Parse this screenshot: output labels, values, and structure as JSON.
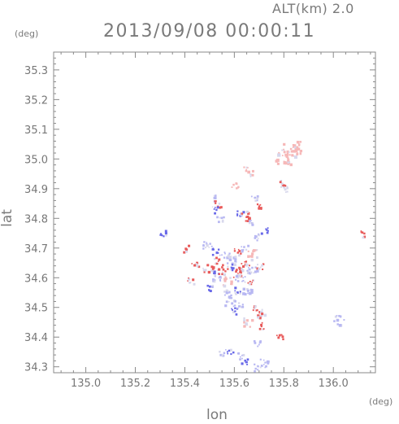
{
  "header": {
    "altitude_label": "ALT(km)",
    "altitude_value": "2.0",
    "timestamp": "2013/09/08 00:00:11"
  },
  "chart_data": {
    "type": "scatter",
    "xlabel": "lon",
    "ylabel": "lat",
    "x_unit": "(deg)",
    "y_unit": "(deg)",
    "xlim": [
      134.87,
      136.17
    ],
    "ylim": [
      34.28,
      35.36
    ],
    "xticks": [
      135.0,
      135.2,
      135.4,
      135.6,
      135.8,
      136.0
    ],
    "xtick_labels": [
      "135.0",
      "135.2",
      "135.4",
      "135.6",
      "135.8",
      "136.0"
    ],
    "yticks": [
      34.3,
      34.4,
      34.5,
      34.6,
      34.7,
      34.8,
      34.9,
      35.0,
      35.1,
      35.2,
      35.3
    ],
    "ytick_labels": [
      "34.3",
      "34.4",
      "34.5",
      "34.6",
      "34.7",
      "34.8",
      "34.9",
      "35.0",
      "35.1",
      "35.2",
      "35.3"
    ],
    "grid": false,
    "colors": {
      "positive_strong": "#e85a5a",
      "positive_light": "#f6b8b8",
      "negative_strong": "#6868e8",
      "negative_light": "#b8b8f2",
      "neutral": "#d8d8ec",
      "axis": "#8a8a8a"
    },
    "points": [
      {
        "lon": 135.84,
        "lat": 35.04,
        "c": "positive_light",
        "s": 3
      },
      {
        "lon": 135.82,
        "lat": 35.03,
        "c": "positive_light",
        "s": 3
      },
      {
        "lon": 135.79,
        "lat": 35.01,
        "c": "positive_light",
        "s": 3
      },
      {
        "lon": 135.81,
        "lat": 35.0,
        "c": "positive_light",
        "s": 2
      },
      {
        "lon": 135.65,
        "lat": 34.96,
        "c": "positive_light",
        "s": 2
      },
      {
        "lon": 135.79,
        "lat": 34.92,
        "c": "positive_strong",
        "s": 1
      },
      {
        "lon": 135.8,
        "lat": 34.9,
        "c": "neutral",
        "s": 1
      },
      {
        "lon": 135.6,
        "lat": 34.91,
        "c": "positive_light",
        "s": 1
      },
      {
        "lon": 135.51,
        "lat": 34.87,
        "c": "negative_light",
        "s": 1
      },
      {
        "lon": 135.53,
        "lat": 34.85,
        "c": "positive_strong",
        "s": 1
      },
      {
        "lon": 135.52,
        "lat": 34.83,
        "c": "negative_strong",
        "s": 1
      },
      {
        "lon": 135.54,
        "lat": 34.8,
        "c": "negative_light",
        "s": 1
      },
      {
        "lon": 135.68,
        "lat": 34.87,
        "c": "negative_light",
        "s": 1
      },
      {
        "lon": 135.7,
        "lat": 34.84,
        "c": "positive_strong",
        "s": 1
      },
      {
        "lon": 135.62,
        "lat": 34.82,
        "c": "negative_strong",
        "s": 1
      },
      {
        "lon": 135.64,
        "lat": 34.81,
        "c": "positive_strong",
        "s": 2
      },
      {
        "lon": 135.67,
        "lat": 34.79,
        "c": "negative_light",
        "s": 1
      },
      {
        "lon": 135.72,
        "lat": 34.76,
        "c": "negative_strong",
        "s": 1
      },
      {
        "lon": 135.69,
        "lat": 34.74,
        "c": "negative_light",
        "s": 1
      },
      {
        "lon": 135.31,
        "lat": 34.75,
        "c": "negative_strong",
        "s": 1
      },
      {
        "lon": 136.12,
        "lat": 34.75,
        "c": "positive_strong",
        "s": 1
      },
      {
        "lon": 135.4,
        "lat": 34.7,
        "c": "positive_strong",
        "s": 1
      },
      {
        "lon": 135.49,
        "lat": 34.71,
        "c": "negative_light",
        "s": 2
      },
      {
        "lon": 135.52,
        "lat": 34.69,
        "c": "negative_strong",
        "s": 1
      },
      {
        "lon": 135.56,
        "lat": 34.68,
        "c": "negative_light",
        "s": 2
      },
      {
        "lon": 135.61,
        "lat": 34.69,
        "c": "positive_strong",
        "s": 1
      },
      {
        "lon": 135.64,
        "lat": 34.7,
        "c": "negative_light",
        "s": 1
      },
      {
        "lon": 135.67,
        "lat": 34.68,
        "c": "positive_light",
        "s": 2
      },
      {
        "lon": 135.59,
        "lat": 34.66,
        "c": "negative_light",
        "s": 2
      },
      {
        "lon": 135.53,
        "lat": 34.66,
        "c": "positive_strong",
        "s": 1
      },
      {
        "lon": 135.44,
        "lat": 34.65,
        "c": "positive_strong",
        "s": 1
      },
      {
        "lon": 135.49,
        "lat": 34.63,
        "c": "positive_strong",
        "s": 2
      },
      {
        "lon": 135.52,
        "lat": 34.62,
        "c": "negative_strong",
        "s": 1
      },
      {
        "lon": 135.55,
        "lat": 34.63,
        "c": "positive_strong",
        "s": 2
      },
      {
        "lon": 135.58,
        "lat": 34.64,
        "c": "negative_strong",
        "s": 1
      },
      {
        "lon": 135.61,
        "lat": 34.62,
        "c": "positive_strong",
        "s": 2
      },
      {
        "lon": 135.64,
        "lat": 34.64,
        "c": "positive_strong",
        "s": 2
      },
      {
        "lon": 135.67,
        "lat": 34.63,
        "c": "negative_light",
        "s": 2
      },
      {
        "lon": 135.7,
        "lat": 34.64,
        "c": "positive_strong",
        "s": 1
      },
      {
        "lon": 135.42,
        "lat": 34.59,
        "c": "positive_strong",
        "s": 1
      },
      {
        "lon": 135.53,
        "lat": 34.6,
        "c": "negative_light",
        "s": 2
      },
      {
        "lon": 135.57,
        "lat": 34.59,
        "c": "positive_light",
        "s": 2
      },
      {
        "lon": 135.62,
        "lat": 34.6,
        "c": "negative_light",
        "s": 2
      },
      {
        "lon": 135.66,
        "lat": 34.59,
        "c": "positive_strong",
        "s": 1
      },
      {
        "lon": 135.5,
        "lat": 34.57,
        "c": "negative_strong",
        "s": 1
      },
      {
        "lon": 135.57,
        "lat": 34.55,
        "c": "negative_light",
        "s": 2
      },
      {
        "lon": 135.61,
        "lat": 34.56,
        "c": "negative_strong",
        "s": 1
      },
      {
        "lon": 135.65,
        "lat": 34.55,
        "c": "negative_light",
        "s": 2
      },
      {
        "lon": 135.58,
        "lat": 34.52,
        "c": "negative_light",
        "s": 2
      },
      {
        "lon": 135.62,
        "lat": 34.51,
        "c": "negative_light",
        "s": 1
      },
      {
        "lon": 135.6,
        "lat": 34.49,
        "c": "negative_strong",
        "s": 1
      },
      {
        "lon": 135.68,
        "lat": 34.5,
        "c": "positive_strong",
        "s": 1
      },
      {
        "lon": 135.7,
        "lat": 34.48,
        "c": "positive_strong",
        "s": 2
      },
      {
        "lon": 135.65,
        "lat": 34.45,
        "c": "positive_light",
        "s": 2
      },
      {
        "lon": 135.71,
        "lat": 34.44,
        "c": "positive_strong",
        "s": 1
      },
      {
        "lon": 135.78,
        "lat": 34.4,
        "c": "positive_strong",
        "s": 1
      },
      {
        "lon": 136.02,
        "lat": 34.46,
        "c": "negative_light",
        "s": 2
      },
      {
        "lon": 135.69,
        "lat": 34.38,
        "c": "negative_light",
        "s": 1
      },
      {
        "lon": 135.55,
        "lat": 34.35,
        "c": "negative_light",
        "s": 1
      },
      {
        "lon": 135.58,
        "lat": 34.35,
        "c": "negative_strong",
        "s": 1
      },
      {
        "lon": 135.62,
        "lat": 34.34,
        "c": "negative_light",
        "s": 1
      },
      {
        "lon": 135.64,
        "lat": 34.32,
        "c": "negative_strong",
        "s": 1
      },
      {
        "lon": 135.72,
        "lat": 34.31,
        "c": "negative_light",
        "s": 2
      },
      {
        "lon": 135.69,
        "lat": 34.3,
        "c": "negative_light",
        "s": 1
      }
    ]
  }
}
